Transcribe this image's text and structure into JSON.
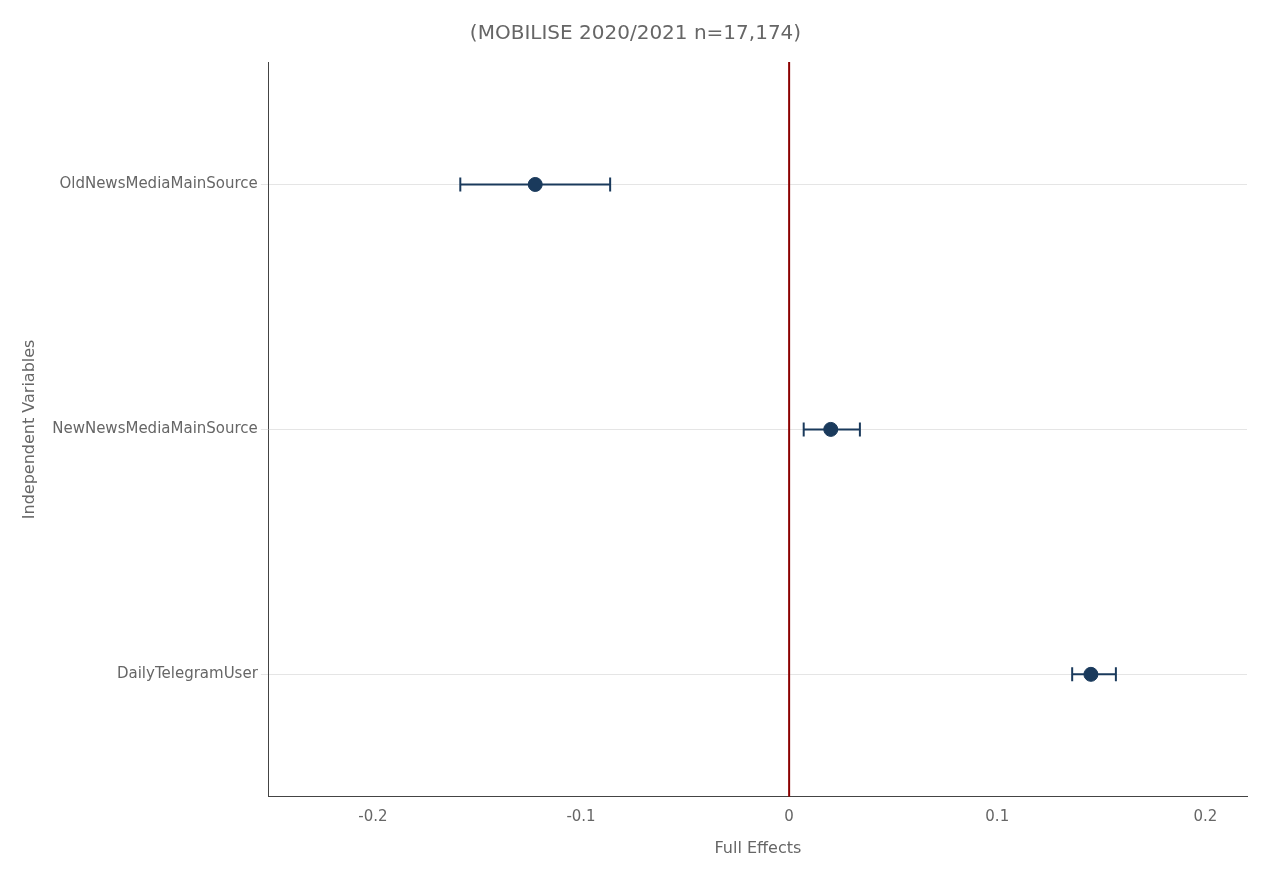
{
  "chart_data": {
    "type": "forest",
    "title": "(MOBILISE 2020/2021 n=17,174)",
    "xlabel": "Full Effects",
    "ylabel": "Independent Variables",
    "categories": [
      "OldNewsMediaMainSource",
      "NewNewsMediaMainSource",
      "DailyTelegramUser"
    ],
    "values": [
      -0.122,
      0.02,
      0.145
    ],
    "ci_lower": [
      -0.158,
      0.007,
      0.136
    ],
    "ci_upper": [
      -0.086,
      0.034,
      0.157
    ],
    "color": "#1a3a5c",
    "reference_line": {
      "value": 0,
      "color": "#8b0000"
    },
    "xlim": [
      -0.25,
      0.22
    ],
    "xticks": [
      -0.2,
      -0.1,
      0,
      0.1,
      0.2
    ],
    "grid": "y"
  }
}
